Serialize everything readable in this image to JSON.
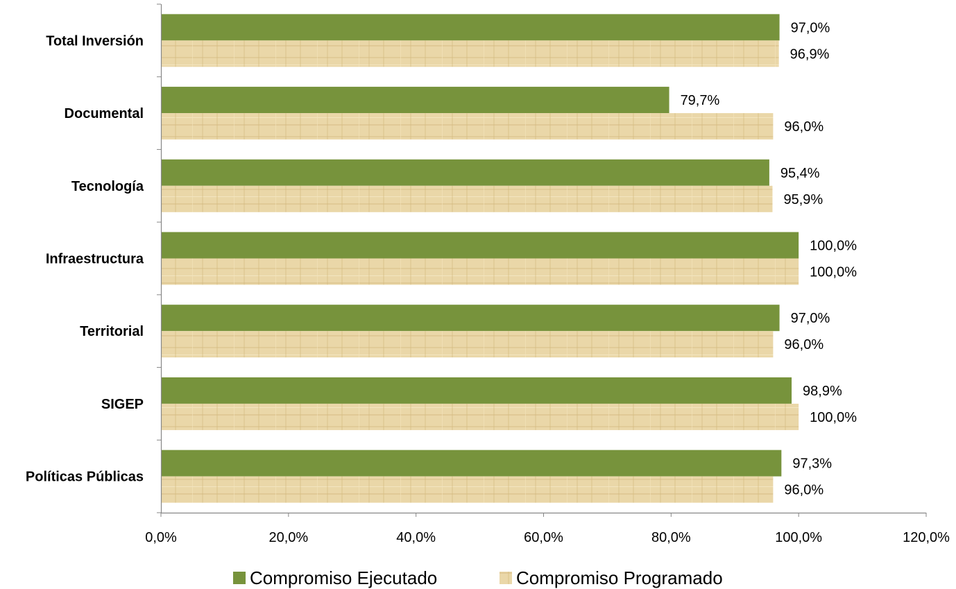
{
  "chart_data": {
    "type": "bar",
    "orientation": "horizontal",
    "categories": [
      "Total Inversión",
      "Documental",
      "Tecnología",
      "Infraestructura",
      "Territorial",
      "SIGEP",
      "Políticas Públicas"
    ],
    "series": [
      {
        "name": "Compromiso Ejecutado",
        "values": [
          97.0,
          79.7,
          95.4,
          100.0,
          97.0,
          98.9,
          97.3
        ],
        "labels": [
          "97,0%",
          "79,7%",
          "95,4%",
          "100,0%",
          "97,0%",
          "98,9%",
          "97,3%"
        ],
        "color": "#77933c"
      },
      {
        "name": "Compromiso Programado",
        "values": [
          96.9,
          96.0,
          95.9,
          100.0,
          96.0,
          100.0,
          96.0
        ],
        "labels": [
          "96,9%",
          "96,0%",
          "95,9%",
          "100,0%",
          "96,0%",
          "100,0%",
          "96,0%"
        ],
        "color": "#e9d5a4"
      }
    ],
    "xlim": [
      0,
      120
    ],
    "xticks": [
      "0,0%",
      "20,0%",
      "40,0%",
      "60,0%",
      "80,0%",
      "100,0%",
      "120,0%"
    ],
    "grid": false,
    "legend": "bottom"
  }
}
